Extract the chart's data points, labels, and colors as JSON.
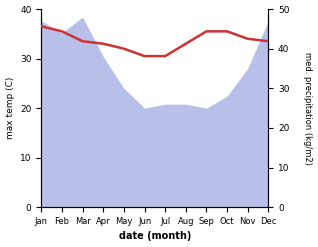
{
  "months": [
    "Jan",
    "Feb",
    "Mar",
    "Apr",
    "May",
    "Jun",
    "Jul",
    "Aug",
    "Sep",
    "Oct",
    "Nov",
    "Dec"
  ],
  "temp": [
    36.5,
    35.5,
    33.5,
    33.0,
    32.0,
    30.5,
    30.5,
    33.0,
    35.5,
    35.5,
    34.0,
    33.5
  ],
  "precip": [
    47,
    44,
    48,
    38,
    30,
    25,
    26,
    26,
    25,
    28,
    35,
    47
  ],
  "temp_color": "#cc3333",
  "precip_fill_color": "#b8bfe8",
  "left_ylabel": "max temp (C)",
  "right_ylabel": "med. precipitation (kg/m2)",
  "xlabel": "date (month)",
  "ylim_left": [
    0,
    40
  ],
  "ylim_right": [
    0,
    50
  ],
  "temp_linewidth": 1.8,
  "right_yticks": [
    0,
    10,
    20,
    30,
    40,
    50
  ],
  "left_yticks": [
    0,
    10,
    20,
    30,
    40
  ]
}
